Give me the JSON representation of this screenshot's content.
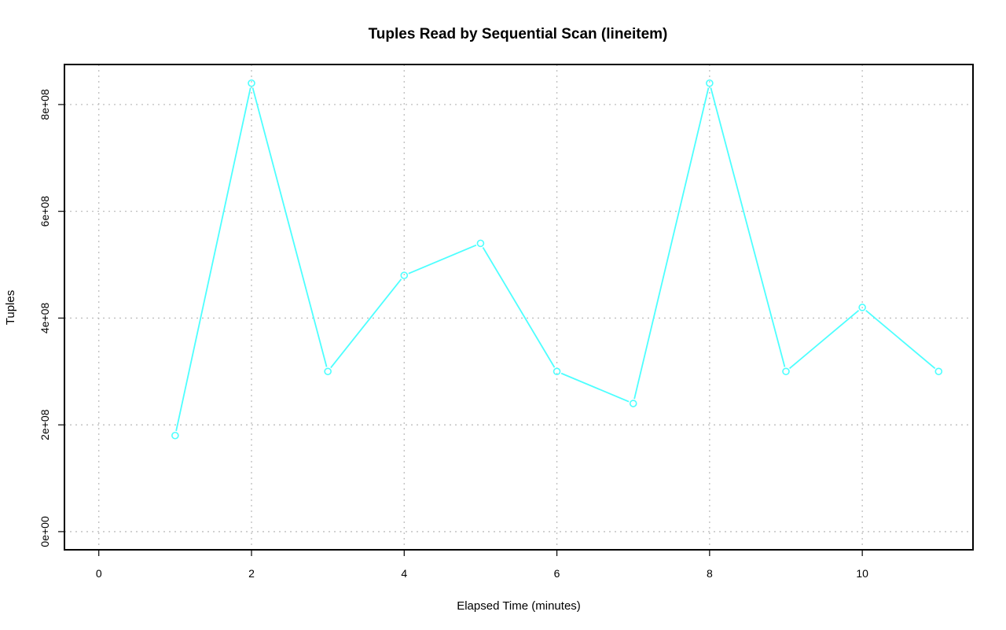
{
  "chart_data": {
    "type": "line",
    "title": "Tuples Read by Sequential Scan (lineitem)",
    "xlabel": "Elapsed Time (minutes)",
    "ylabel": "Tuples",
    "xlim": [
      -0.45,
      11.45
    ],
    "ylim": [
      -34000000.0,
      875000000.0
    ],
    "x_ticks": [
      0,
      2,
      4,
      6,
      8,
      10
    ],
    "x_tick_labels": [
      "0",
      "2",
      "4",
      "6",
      "8",
      "10"
    ],
    "y_ticks": [
      0,
      200000000,
      400000000,
      600000000,
      800000000
    ],
    "y_tick_labels": [
      "0e+00",
      "2e+08",
      "4e+08",
      "6e+08",
      "8e+08"
    ],
    "grid": true,
    "series": [
      {
        "color": "#4dffff",
        "marker": "circle",
        "x": [
          1,
          2,
          3,
          4,
          5,
          6,
          7,
          8,
          9,
          10,
          11
        ],
        "values": [
          180000000,
          840000000,
          300000000,
          480000000,
          540000000,
          300000000,
          240000000,
          840000000,
          300000000,
          420000000,
          300000000
        ]
      }
    ]
  }
}
